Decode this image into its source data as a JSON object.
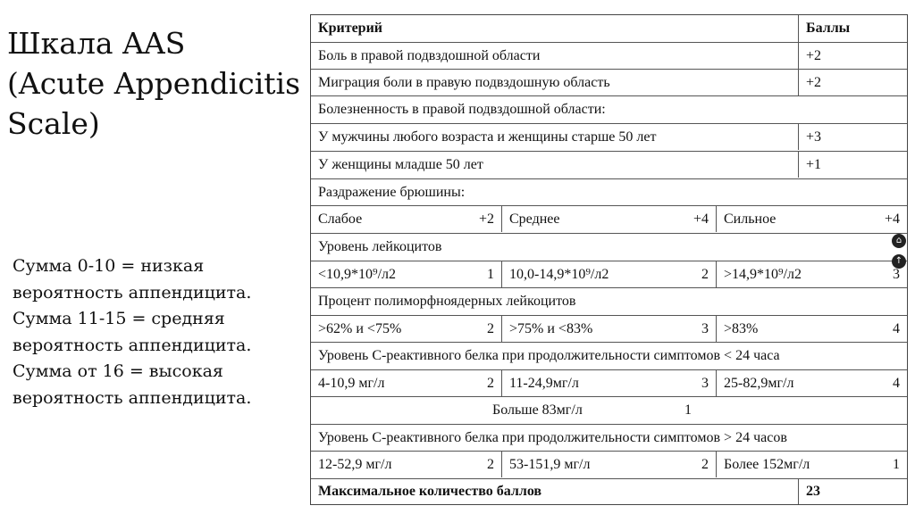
{
  "title": {
    "line1": "Шкала AAS",
    "line2": "(Acute Appendicitis",
    "line3": "Scale)"
  },
  "summary": {
    "line1": "Сумма 0-10 = низкая",
    "line2": "вероятность аппендицита.",
    "line3": "Сумма 11-15 = средняя",
    "line4": "вероятность аппендицита.",
    "line5": "Сумма от 16 = высокая",
    "line6": "вероятность аппендицита."
  },
  "table": {
    "header": {
      "criterion": "Критерий",
      "points": "Баллы"
    },
    "pain_rlq": {
      "label": "Боль в правой подвздошной области",
      "points": "+2"
    },
    "migration": {
      "label": "Миграция боли в правую подвздошную область",
      "points": "+2"
    },
    "tenderness": {
      "label": "Болезненность в правой подвздошной области:"
    },
    "tender_men": {
      "label": "У мужчины любого возраста и женщины старше 50 лет",
      "points": "+3"
    },
    "tender_women": {
      "label": "У женщины младше 50 лет",
      "points": "+1"
    },
    "peritoneal": {
      "label": "Раздражение брюшины:"
    },
    "peritoneal_levels": [
      {
        "label": "Слабое",
        "points": "+2"
      },
      {
        "label": "Среднее",
        "points": "+4"
      },
      {
        "label": "Сильное",
        "points": "+4"
      }
    ],
    "wbc": {
      "label": "Уровень лейкоцитов"
    },
    "wbc_levels": [
      {
        "label": "<10,9*10⁹/л2",
        "points": "1"
      },
      {
        "label": "10,0-14,9*10⁹/л2",
        "points": "2"
      },
      {
        "label": ">14,9*10⁹/л2",
        "points": "3"
      }
    ],
    "pmn": {
      "label": "Процент полиморфноядерных лейкоцитов"
    },
    "pmn_levels": [
      {
        "label": ">62% и <75%",
        "points": "2"
      },
      {
        "label": ">75% и <83%",
        "points": "3"
      },
      {
        "label": ">83%",
        "points": "4"
      }
    ],
    "crp_short": {
      "label": "Уровень С-реактивного белка при продолжительности симптомов < 24 часа"
    },
    "crp_short_levels": [
      {
        "label": "4-10,9 мг/л",
        "points": "2"
      },
      {
        "label": "11-24,9мг/л",
        "points": "3"
      },
      {
        "label": "25-82,9мг/л",
        "points": "4"
      }
    ],
    "crp_short_extra": {
      "label": "Больше 83мг/л",
      "points": "1"
    },
    "crp_long": {
      "label": "Уровень С-реактивного белка при продолжительности симптомов > 24 часов"
    },
    "crp_long_levels": [
      {
        "label": "12-52,9 мг/л",
        "points": "2"
      },
      {
        "label": "53-151,9 мг/л",
        "points": "2"
      },
      {
        "label": "Более 152мг/л",
        "points": "1"
      }
    ],
    "total": {
      "label": "Максимальное количество баллов",
      "points": "23"
    }
  },
  "icons": [
    "home-icon",
    "up-arrow-icon"
  ]
}
